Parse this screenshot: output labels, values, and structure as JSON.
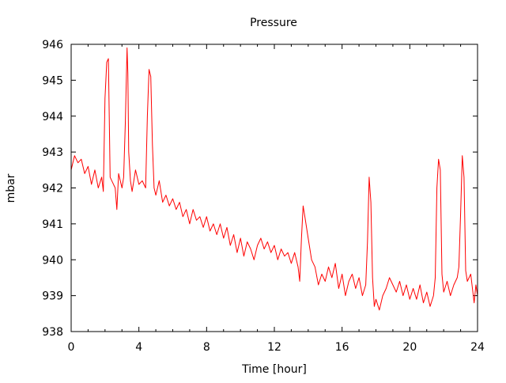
{
  "chart_data": {
    "type": "line",
    "title": "Pressure",
    "xlabel": "Time [hour]",
    "ylabel": "mbar",
    "xlim": [
      0,
      24
    ],
    "ylim": [
      938,
      946
    ],
    "xticks": [
      0,
      4,
      8,
      12,
      16,
      20,
      24
    ],
    "yticks": [
      938,
      939,
      940,
      941,
      942,
      943,
      944,
      945,
      946
    ],
    "grid": false,
    "legend": "none",
    "series": [
      {
        "color": "#ff0000",
        "x": [
          0.0,
          0.2,
          0.4,
          0.6,
          0.8,
          1.0,
          1.2,
          1.4,
          1.6,
          1.8,
          1.9,
          2.0,
          2.1,
          2.2,
          2.3,
          2.4,
          2.6,
          2.7,
          2.8,
          3.0,
          3.1,
          3.2,
          3.3,
          3.35,
          3.4,
          3.5,
          3.6,
          3.8,
          4.0,
          4.2,
          4.4,
          4.5,
          4.6,
          4.7,
          4.8,
          4.9,
          5.0,
          5.2,
          5.4,
          5.6,
          5.8,
          6.0,
          6.2,
          6.4,
          6.6,
          6.8,
          7.0,
          7.2,
          7.4,
          7.6,
          7.8,
          8.0,
          8.2,
          8.4,
          8.6,
          8.8,
          9.0,
          9.2,
          9.4,
          9.6,
          9.8,
          10.0,
          10.2,
          10.4,
          10.6,
          10.8,
          11.0,
          11.2,
          11.4,
          11.6,
          11.8,
          12.0,
          12.2,
          12.4,
          12.6,
          12.8,
          13.0,
          13.2,
          13.4,
          13.5,
          13.6,
          13.7,
          13.8,
          14.0,
          14.2,
          14.4,
          14.6,
          14.8,
          15.0,
          15.2,
          15.4,
          15.6,
          15.8,
          16.0,
          16.2,
          16.4,
          16.6,
          16.8,
          17.0,
          17.2,
          17.4,
          17.5,
          17.6,
          17.7,
          17.8,
          17.9,
          18.0,
          18.2,
          18.4,
          18.6,
          18.8,
          19.0,
          19.2,
          19.4,
          19.6,
          19.8,
          20.0,
          20.2,
          20.4,
          20.6,
          20.8,
          21.0,
          21.2,
          21.4,
          21.5,
          21.6,
          21.7,
          21.8,
          21.9,
          22.0,
          22.2,
          22.4,
          22.6,
          22.8,
          22.9,
          23.0,
          23.1,
          23.2,
          23.3,
          23.4,
          23.6,
          23.8,
          23.9,
          24.0
        ],
        "values": [
          942.5,
          942.9,
          942.7,
          942.8,
          942.4,
          942.6,
          942.1,
          942.5,
          942.0,
          942.3,
          941.9,
          944.5,
          945.5,
          945.6,
          942.3,
          942.2,
          942.0,
          941.4,
          942.4,
          942.0,
          942.3,
          943.8,
          945.9,
          945.2,
          943.0,
          942.2,
          941.9,
          942.5,
          942.1,
          942.2,
          942.0,
          944.0,
          945.3,
          945.1,
          943.2,
          942.0,
          941.8,
          942.2,
          941.6,
          941.8,
          941.5,
          941.7,
          941.4,
          941.6,
          941.2,
          941.4,
          941.0,
          941.4,
          941.1,
          941.2,
          940.9,
          941.2,
          940.8,
          941.0,
          940.7,
          941.0,
          940.6,
          940.9,
          940.4,
          940.7,
          940.2,
          940.6,
          940.1,
          940.5,
          940.3,
          940.0,
          940.4,
          940.6,
          940.3,
          940.5,
          940.2,
          940.4,
          940.0,
          940.3,
          940.1,
          940.2,
          939.9,
          940.2,
          939.8,
          939.4,
          940.6,
          941.5,
          941.2,
          940.6,
          940.0,
          939.8,
          939.3,
          939.6,
          939.4,
          939.8,
          939.5,
          939.9,
          939.2,
          939.6,
          939.0,
          939.4,
          939.6,
          939.2,
          939.5,
          939.0,
          939.3,
          940.5,
          942.3,
          941.6,
          939.5,
          938.7,
          938.9,
          938.6,
          939.0,
          939.2,
          939.5,
          939.3,
          939.1,
          939.4,
          939.0,
          939.3,
          938.9,
          939.2,
          938.9,
          939.3,
          938.8,
          939.1,
          938.7,
          939.0,
          939.5,
          942.0,
          942.8,
          942.5,
          939.6,
          939.1,
          939.4,
          939.0,
          939.3,
          939.5,
          939.8,
          941.3,
          942.9,
          942.3,
          939.7,
          939.4,
          939.6,
          938.8,
          939.3,
          939.0
        ]
      }
    ]
  }
}
